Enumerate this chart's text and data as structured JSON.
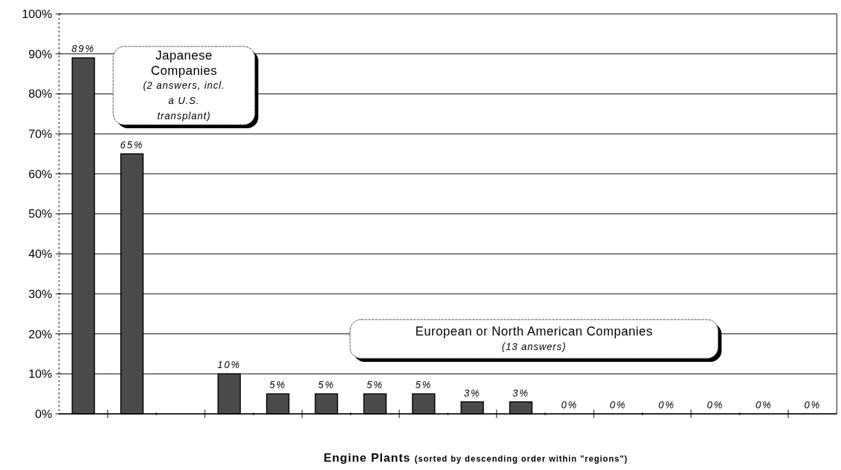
{
  "chart_data": {
    "type": "bar",
    "xlabel": "Engine Plants $_{(sorted by descending order within \"regions\")}$",
    "categories": [
      null,
      null,
      null,
      null,
      null,
      null,
      null,
      null,
      null,
      null,
      null,
      null,
      null,
      null,
      null,
      null
    ],
    "values": [
      89,
      65,
      null,
      10,
      5,
      5,
      5,
      5,
      3,
      3,
      0,
      0,
      0,
      0,
      0,
      0
    ],
    "value_labels": [
      "89%",
      "65%",
      null,
      "10%",
      "5%",
      "5%",
      "5%",
      "5%",
      "3%",
      "3%",
      "0%",
      "0%",
      "0%",
      "0%",
      "0%",
      "0%"
    ],
    "color": "#4a4a4a",
    "ylim": [
      0,
      100
    ],
    "yticks": [
      {
        "value": 0,
        "label": "0%"
      },
      {
        "value": 10,
        "label": "10%"
      },
      {
        "value": 20,
        "label": "20%"
      },
      {
        "value": 30,
        "label": "30%"
      },
      {
        "value": 40,
        "label": "40%"
      },
      {
        "value": 50,
        "label": "50%"
      },
      {
        "value": 60,
        "label": "60%"
      },
      {
        "value": 70,
        "label": "70%"
      },
      {
        "value": 80,
        "label": "80%"
      },
      {
        "value": 90,
        "label": "90%"
      },
      {
        "value": 100,
        "label": "100%"
      }
    ],
    "grid": "y",
    "annotations": [
      "Japanese Companies",
      "(2 answers, incl. a U.S. transplant)",
      "European or North American Companies",
      "(13 answers)"
    ]
  }
}
